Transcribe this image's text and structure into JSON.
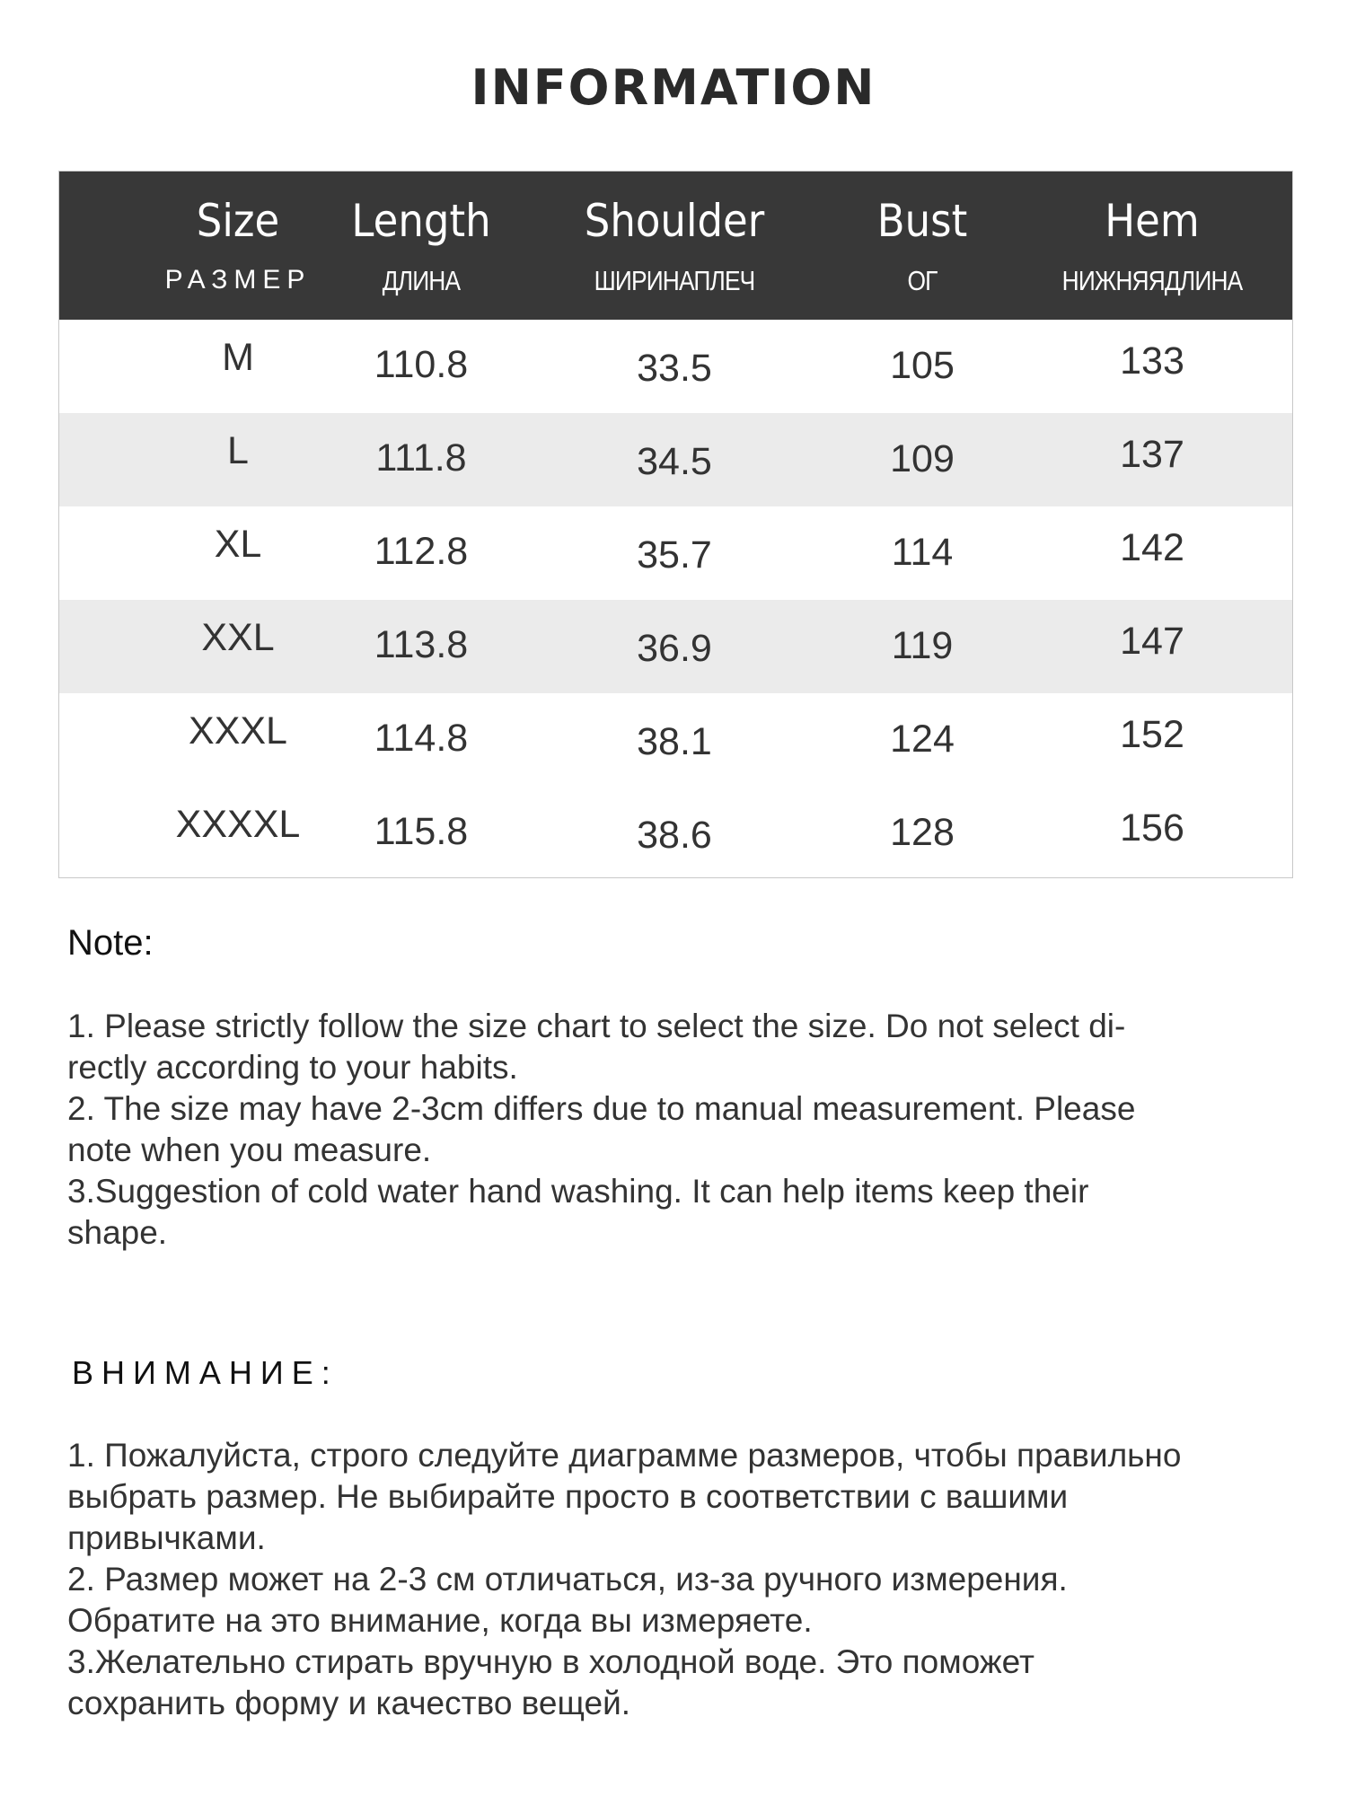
{
  "title": "INFORMATION",
  "table": {
    "columns": [
      {
        "en": "Size",
        "ru": "РАЗМЕР"
      },
      {
        "en": "Length",
        "ru": "ДЛИНА"
      },
      {
        "en": "Shoulder",
        "ru": "ШИРИНАПЛЕЧ"
      },
      {
        "en": "Bust",
        "ru": "ОГ"
      },
      {
        "en": "Hem",
        "ru": "НИЖНЯЯДЛИНА"
      }
    ],
    "rows": [
      [
        "M",
        "110.8",
        "33.5",
        "105",
        "133"
      ],
      [
        "L",
        "111.8",
        "34.5",
        "109",
        "137"
      ],
      [
        "XL",
        "112.8",
        "35.7",
        "114",
        "142"
      ],
      [
        "XXL",
        "113.8",
        "36.9",
        "119",
        "147"
      ],
      [
        "XXXL",
        "114.8",
        "38.1",
        "124",
        "152"
      ],
      [
        "XXXXL",
        "115.8",
        "38.6",
        "128",
        "156"
      ]
    ]
  },
  "note": {
    "heading": "Note:",
    "lines": [
      "1. Please strictly follow the size chart  to select the size. Do not select di-",
      "rectly according to your habits.",
      "2. The size may have 2-3cm differs due to manual measurement. Please",
      "note when you measure.",
      "3.Suggestion of cold water hand washing. It can help items keep their",
      "shape."
    ]
  },
  "note_ru": {
    "heading": "ВНИМАНИЕ:",
    "lines": [
      "1. Пожалуйста, строго следуйте диаграмме размеров, чтобы правильно",
      "выбрать размер. Не выбирайте просто в соответствии с вашими",
      "привычками.",
      "2. Размер может на 2-3 см отличаться, из-за ручного измерения.",
      "Обратите на это внимание, когда вы измеряете.",
      "3.Желательно стирать вручную в холодной воде. Это поможет",
      "сохранить форму и качество вещей."
    ]
  }
}
